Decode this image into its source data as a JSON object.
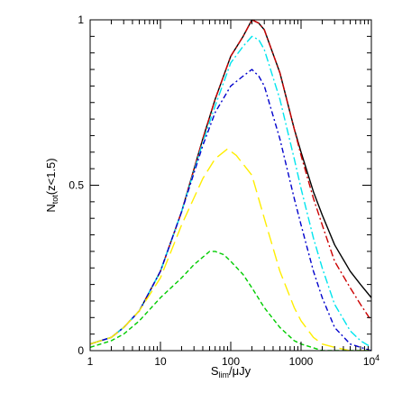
{
  "chart_data": {
    "type": "line",
    "title": "",
    "xlabel": {
      "main": "S",
      "sub": "lim",
      "rest": "/μJy"
    },
    "ylabel": {
      "main": "N",
      "sub": "tot",
      "rest": "(z<1.5)"
    },
    "xscale": "log",
    "xlim": [
      1,
      10000
    ],
    "ylim": [
      0,
      1
    ],
    "grid": false,
    "legend": "none",
    "x_ticks": [
      {
        "value": 1,
        "label": "1"
      },
      {
        "value": 10,
        "label": "10"
      },
      {
        "value": 100,
        "label": "100"
      },
      {
        "value": 1000,
        "label": "1000"
      },
      {
        "value": 10000,
        "label": "10",
        "sup": "4"
      }
    ],
    "y_ticks": [
      {
        "value": 0,
        "label": "0"
      },
      {
        "value": 0.5,
        "label": "0.5"
      },
      {
        "value": 1,
        "label": "1"
      }
    ],
    "series": [
      {
        "color": "#000000",
        "dash": "solid",
        "width": 1.4,
        "points": [
          [
            1,
            0.02
          ],
          [
            2,
            0.04
          ],
          [
            3,
            0.07
          ],
          [
            5,
            0.12
          ],
          [
            10,
            0.24
          ],
          [
            20,
            0.42
          ],
          [
            40,
            0.64
          ],
          [
            60,
            0.76
          ],
          [
            100,
            0.89
          ],
          [
            150,
            0.95
          ],
          [
            200,
            1.0
          ],
          [
            250,
            0.99
          ],
          [
            300,
            0.97
          ],
          [
            500,
            0.84
          ],
          [
            800,
            0.67
          ],
          [
            1000,
            0.6
          ],
          [
            1500,
            0.48
          ],
          [
            2000,
            0.41
          ],
          [
            3000,
            0.32
          ],
          [
            5000,
            0.24
          ],
          [
            7000,
            0.2
          ],
          [
            10000,
            0.16
          ]
        ]
      },
      {
        "color": "#cc0000",
        "dash": "8 3 2 3",
        "width": 1.4,
        "points": [
          [
            1,
            0.02
          ],
          [
            2,
            0.04
          ],
          [
            3,
            0.07
          ],
          [
            5,
            0.12
          ],
          [
            10,
            0.24
          ],
          [
            20,
            0.42
          ],
          [
            40,
            0.64
          ],
          [
            60,
            0.76
          ],
          [
            100,
            0.89
          ],
          [
            150,
            0.95
          ],
          [
            200,
            1.0
          ],
          [
            250,
            0.99
          ],
          [
            300,
            0.97
          ],
          [
            500,
            0.84
          ],
          [
            800,
            0.67
          ],
          [
            1000,
            0.59
          ],
          [
            1500,
            0.46
          ],
          [
            2000,
            0.38
          ],
          [
            3000,
            0.27
          ],
          [
            5000,
            0.19
          ],
          [
            7000,
            0.14
          ],
          [
            10000,
            0.09
          ]
        ]
      },
      {
        "color": "#00e5ee",
        "dash": "9 3 2 3",
        "width": 1.4,
        "points": [
          [
            1,
            0.02
          ],
          [
            2,
            0.04
          ],
          [
            3,
            0.07
          ],
          [
            5,
            0.12
          ],
          [
            10,
            0.24
          ],
          [
            20,
            0.42
          ],
          [
            40,
            0.63
          ],
          [
            60,
            0.74
          ],
          [
            100,
            0.87
          ],
          [
            150,
            0.92
          ],
          [
            200,
            0.95
          ],
          [
            250,
            0.94
          ],
          [
            300,
            0.91
          ],
          [
            500,
            0.76
          ],
          [
            800,
            0.58
          ],
          [
            1000,
            0.49
          ],
          [
            1500,
            0.34
          ],
          [
            2000,
            0.25
          ],
          [
            3000,
            0.14
          ],
          [
            5000,
            0.06
          ],
          [
            7000,
            0.03
          ],
          [
            10000,
            0.01
          ]
        ]
      },
      {
        "color": "#0000cc",
        "dash": "6 3 2 3",
        "width": 1.4,
        "points": [
          [
            1,
            0.02
          ],
          [
            2,
            0.04
          ],
          [
            3,
            0.07
          ],
          [
            5,
            0.12
          ],
          [
            10,
            0.24
          ],
          [
            20,
            0.42
          ],
          [
            40,
            0.62
          ],
          [
            60,
            0.72
          ],
          [
            100,
            0.8
          ],
          [
            150,
            0.83
          ],
          [
            200,
            0.85
          ],
          [
            250,
            0.83
          ],
          [
            300,
            0.8
          ],
          [
            500,
            0.64
          ],
          [
            800,
            0.46
          ],
          [
            1000,
            0.38
          ],
          [
            1500,
            0.24
          ],
          [
            2000,
            0.16
          ],
          [
            3000,
            0.07
          ],
          [
            5000,
            0.02
          ],
          [
            7000,
            0.01
          ],
          [
            10000,
            0.0
          ]
        ]
      },
      {
        "color": "#ffee00",
        "dash": "14 6",
        "width": 1.4,
        "points": [
          [
            1,
            0.02
          ],
          [
            2,
            0.04
          ],
          [
            3,
            0.07
          ],
          [
            5,
            0.12
          ],
          [
            10,
            0.22
          ],
          [
            20,
            0.38
          ],
          [
            40,
            0.52
          ],
          [
            60,
            0.58
          ],
          [
            90,
            0.61
          ],
          [
            120,
            0.59
          ],
          [
            200,
            0.53
          ],
          [
            300,
            0.4
          ],
          [
            500,
            0.24
          ],
          [
            800,
            0.13
          ],
          [
            1000,
            0.09
          ],
          [
            1500,
            0.04
          ],
          [
            2000,
            0.02
          ],
          [
            3000,
            0.01
          ],
          [
            5000,
            0.0
          ],
          [
            10000,
            0.0
          ]
        ]
      },
      {
        "color": "#00cc00",
        "dash": "5 3",
        "width": 1.4,
        "points": [
          [
            1,
            0.01
          ],
          [
            2,
            0.03
          ],
          [
            3,
            0.05
          ],
          [
            5,
            0.09
          ],
          [
            10,
            0.16
          ],
          [
            20,
            0.22
          ],
          [
            30,
            0.26
          ],
          [
            50,
            0.3
          ],
          [
            60,
            0.3
          ],
          [
            80,
            0.29
          ],
          [
            100,
            0.27
          ],
          [
            150,
            0.23
          ],
          [
            200,
            0.19
          ],
          [
            300,
            0.13
          ],
          [
            500,
            0.07
          ],
          [
            800,
            0.03
          ],
          [
            1000,
            0.02
          ],
          [
            2000,
            0.0
          ],
          [
            10000,
            0.0
          ]
        ]
      }
    ]
  }
}
